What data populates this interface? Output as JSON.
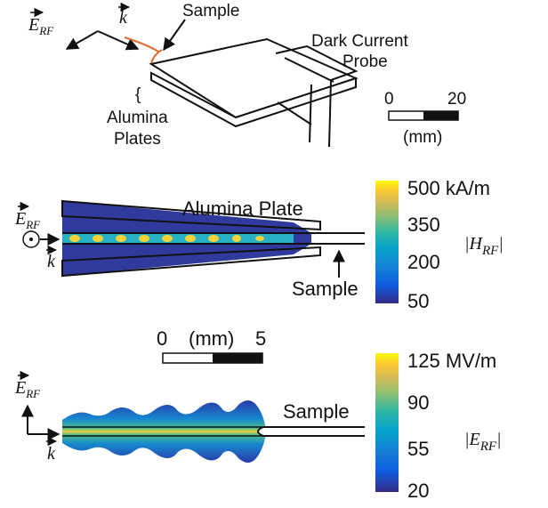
{
  "panel_a": {
    "e_field": {
      "symbol": "E",
      "subscript": "RF"
    },
    "k_vector": {
      "symbol": "k"
    },
    "sample_label": "Sample",
    "probe_label": [
      "Dark Current",
      "Probe"
    ],
    "plates_label": [
      "Alumina",
      "Plates"
    ],
    "scale_bar": {
      "start": "0",
      "end": "20",
      "unit": "(mm)"
    }
  },
  "panel_b": {
    "e_field": {
      "symbol": "E",
      "subscript": "RF"
    },
    "k_vector": {
      "symbol": "k"
    },
    "plate_label": "Alumina Plate",
    "sample_label": "Sample",
    "colorbar": {
      "ticks": [
        "500 kA/m",
        "350",
        "200",
        "50"
      ],
      "label": {
        "prefix": "|H",
        "subscript": "RF",
        "suffix": "|"
      }
    }
  },
  "panel_c": {
    "scale_bar": {
      "start": "0",
      "unit": "(mm)",
      "end": "5"
    },
    "e_field": {
      "symbol": "E",
      "subscript": "RF"
    },
    "k_vector": {
      "symbol": "k"
    },
    "sample_label": "Sample",
    "colorbar": {
      "ticks": [
        "125 MV/m",
        "90",
        "55",
        "20"
      ],
      "label": {
        "prefix": "|E",
        "subscript": "RF",
        "suffix": "|"
      }
    }
  }
}
